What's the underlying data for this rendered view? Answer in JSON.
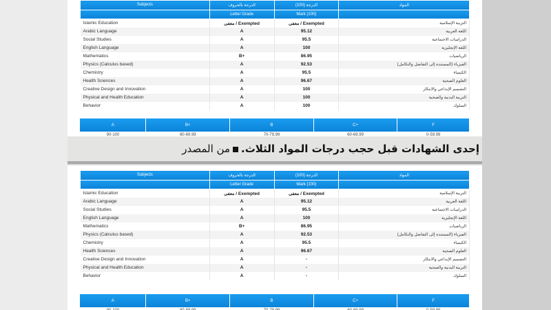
{
  "table": {
    "headers": {
      "subjects_en": "Subjects",
      "letter_ar": "الدرجة بالحروف",
      "mark_ar": "الدرجة (100)",
      "subjects_ar": "المواد",
      "letter_en": "Letter Grade",
      "mark_en": "Mark (100)"
    },
    "rows": [
      {
        "en": "Islamic Education",
        "ar": "التربية الإسلامية"
      },
      {
        "en": "Arabic Language",
        "ar": "اللغة العربية"
      },
      {
        "en": "Social Studies",
        "ar": "الدراسات الاجتماعية"
      },
      {
        "en": "English Language",
        "ar": "اللغة الإنجليزية"
      },
      {
        "en": "Mathematics",
        "ar": "الرياضيات"
      },
      {
        "en": "Physics (Calculus based)",
        "ar": "الفيزياء (المستندة إلى التفاضل والتكامل)"
      },
      {
        "en": "Chemistry",
        "ar": "الكيمياء"
      },
      {
        "en": "Health Sciences",
        "ar": "العلوم الصحية"
      },
      {
        "en": "Creative Design and Innovation",
        "ar": "التصميم الإبداعي والابتكار"
      },
      {
        "en": "Physical and Health Education",
        "ar": "التربية البدنية والصحية"
      },
      {
        "en": "Behavior",
        "ar": "السلوك"
      }
    ]
  },
  "certificate_before": {
    "letters": [
      "معفى / Exempted",
      "A",
      "A",
      "A",
      "B+",
      "A",
      "A",
      "A",
      "A",
      "A",
      "A"
    ],
    "marks": [
      "معفى / Exempted",
      "95.12",
      "95.5",
      "100",
      "86.95",
      "92.53",
      "95.5",
      "96.67",
      "100",
      "100",
      "100"
    ]
  },
  "certificate_after": {
    "letters": [
      "معفى / Exempted",
      "A",
      "A",
      "A",
      "B+",
      "A",
      "A",
      "A",
      "A",
      "A",
      "A"
    ],
    "marks": [
      "معفى / Exempted",
      "95.12",
      "95.5",
      "100",
      "86.95",
      "92.53",
      "95.5",
      "96.67",
      "-",
      "-",
      "-"
    ]
  },
  "scale": {
    "grades": [
      "A",
      "B+",
      "B",
      "C+",
      "F"
    ],
    "ranges": [
      "90-100",
      "80-89.99",
      "70-79.99",
      "60-69.99",
      "0-59.99"
    ]
  },
  "caption": {
    "text": "إحدى الشهادات قبل حجب درجات المواد الثلاث.",
    "source": "من المصدر"
  },
  "colors": {
    "header_blue": "#0b84d9"
  }
}
